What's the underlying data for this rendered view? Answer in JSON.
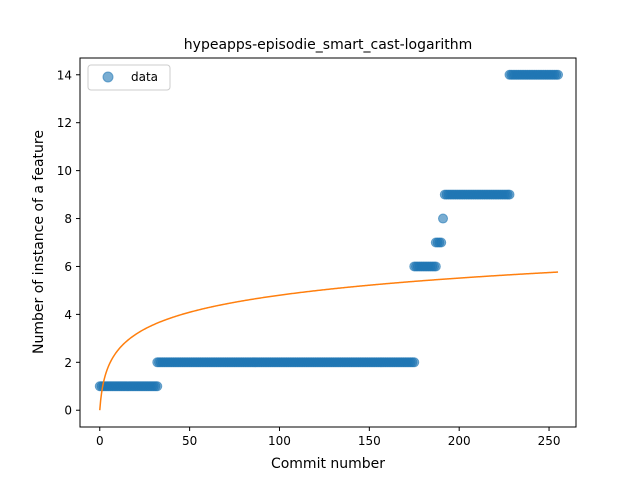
{
  "chart_data": {
    "type": "scatter",
    "title": "hypeapps-episodie_smart_cast-logarithm",
    "xlabel": "Commit number",
    "ylabel": "Number of instance of a feature",
    "xlim": [
      -11,
      265
    ],
    "ylim": [
      -0.7,
      14.7
    ],
    "xticks": [
      0,
      50,
      100,
      150,
      200,
      250
    ],
    "yticks": [
      0,
      2,
      4,
      6,
      8,
      10,
      12,
      14
    ],
    "grid": false,
    "legend": {
      "placement": "top-left",
      "entries": [
        "data"
      ]
    },
    "colors": {
      "data": "#1f77b4",
      "fit": "#ff7f0e"
    },
    "series": [
      {
        "name": "data",
        "kind": "scatter",
        "segments": [
          {
            "x_start": 0,
            "x_end": 32,
            "y": 1
          },
          {
            "x_start": 32,
            "x_end": 175,
            "y": 2
          },
          {
            "x_start": 175,
            "x_end": 187,
            "y": 6
          },
          {
            "x_start": 187,
            "x_end": 190,
            "y": 7
          },
          {
            "x_start": 191,
            "x_end": 191,
            "y": 8
          },
          {
            "x_start": 192,
            "x_end": 228,
            "y": 9
          },
          {
            "x_start": 228,
            "x_end": 255,
            "y": 14
          }
        ]
      },
      {
        "kind": "line",
        "fit": {
          "form": "a*ln(x+1)",
          "a": 1.04
        },
        "x_range": [
          0,
          255
        ]
      }
    ]
  }
}
